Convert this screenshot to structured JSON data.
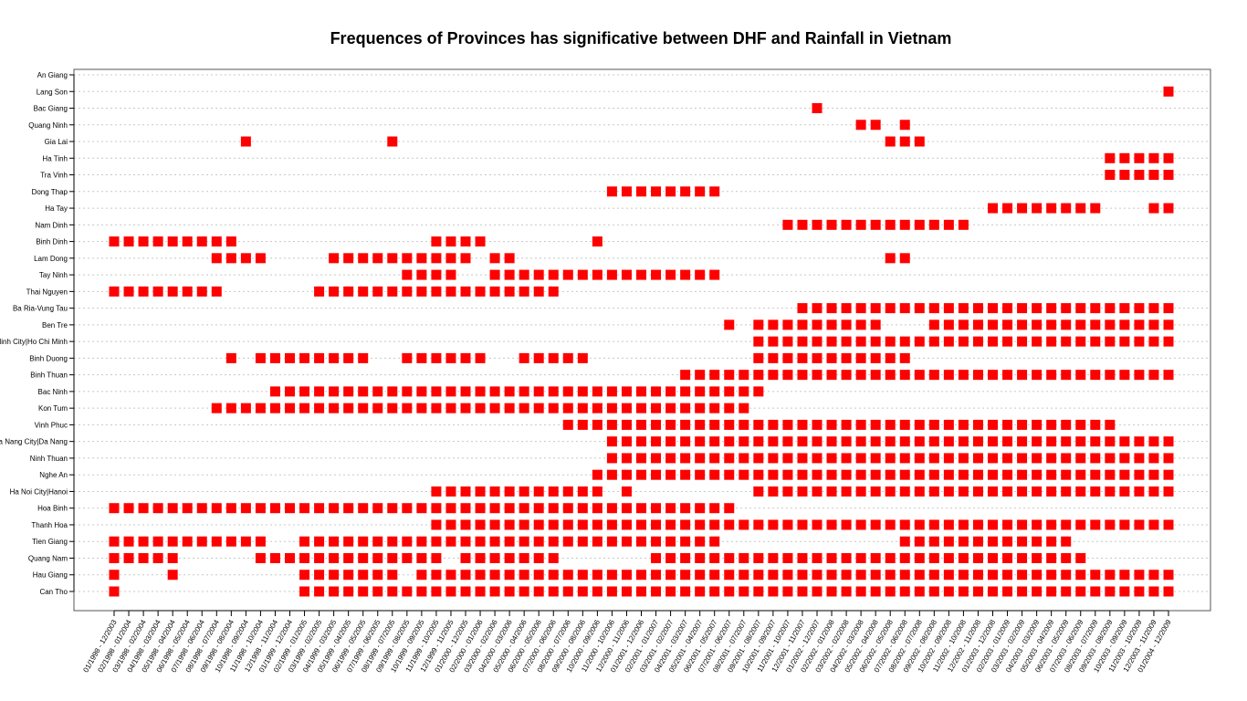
{
  "chart_data": {
    "type": "scatter",
    "title": "Frequences of Provinces has significative between DHF and Rainfall in Vietnam",
    "xlabel": "",
    "ylabel": "",
    "marker": "filled-square",
    "marker_color": "#ff0000",
    "grid": "horizontal dotted",
    "x_tick_labels": [
      "01/1998 - 12/2003",
      "02/1998 - 01/2004",
      "03/1998 - 02/2004",
      "04/1998 - 03/2004",
      "05/1998 - 04/2004",
      "06/1998 - 05/2004",
      "07/1998 - 06/2004",
      "08/1998 - 07/2004",
      "09/1998 - 08/2004",
      "10/1998 - 09/2004",
      "11/1998 - 10/2004",
      "12/1998 - 11/2004",
      "01/1999 - 12/2004",
      "02/1999 - 01/2005",
      "03/1999 - 02/2005",
      "04/1999 - 03/2005",
      "05/1999 - 04/2005",
      "06/1999 - 05/2005",
      "07/1999 - 06/2005",
      "08/1999 - 07/2005",
      "09/1999 - 08/2005",
      "10/1999 - 09/2005",
      "11/1999 - 10/2005",
      "12/1999 - 11/2005",
      "01/2000 - 12/2005",
      "02/2000 - 01/2006",
      "03/2000 - 02/2006",
      "04/2000 - 03/2006",
      "05/2000 - 04/2006",
      "06/2000 - 05/2006",
      "07/2000 - 06/2006",
      "08/2000 - 07/2006",
      "09/2000 - 08/2006",
      "10/2000 - 09/2006",
      "11/2000 - 10/2006",
      "12/2000 - 11/2006",
      "01/2001 - 12/2006",
      "02/2001 - 01/2007",
      "03/2001 - 02/2007",
      "04/2001 - 03/2007",
      "05/2001 - 04/2007",
      "06/2001 - 05/2007",
      "07/2001 - 06/2007",
      "08/2001 - 07/2007",
      "09/2001 - 08/2007",
      "10/2001 - 09/2007",
      "11/2001 - 10/2007",
      "12/2001 - 11/2007",
      "01/2002 - 12/2007",
      "02/2002 - 01/2008",
      "03/2002 - 02/2008",
      "04/2002 - 03/2008",
      "05/2002 - 04/2008",
      "06/2002 - 05/2008",
      "07/2002 - 06/2008",
      "08/2002 - 07/2008",
      "09/2002 - 08/2008",
      "10/2002 - 09/2008",
      "11/2002 - 10/2008",
      "12/2002 - 11/2008",
      "01/2003 - 12/2008",
      "02/2003 - 01/2009",
      "03/2003 - 02/2009",
      "04/2003 - 03/2009",
      "05/2003 - 04/2009",
      "06/2003 - 05/2009",
      "07/2003 - 06/2009",
      "08/2003 - 07/2009",
      "09/2003 - 08/2009",
      "10/2003 - 09/2009",
      "11/2003 - 10/2009",
      "12/2003 - 11/2009",
      "01/2004 - 12/2009"
    ],
    "provinces": [
      {
        "name": "An Giang",
        "periods": []
      },
      {
        "name": "Lang Son",
        "periods": [
          [
            73,
            73
          ]
        ]
      },
      {
        "name": "Bac Giang",
        "periods": [
          [
            49,
            49
          ]
        ]
      },
      {
        "name": "Quang Ninh",
        "periods": [
          [
            52,
            53
          ],
          [
            55,
            55
          ]
        ]
      },
      {
        "name": "Gia Lai",
        "periods": [
          [
            10,
            10
          ],
          [
            20,
            20
          ],
          [
            54,
            56
          ]
        ]
      },
      {
        "name": "Ha Tinh",
        "periods": [
          [
            69,
            73
          ]
        ]
      },
      {
        "name": "Tra Vinh",
        "periods": [
          [
            69,
            73
          ]
        ]
      },
      {
        "name": "Dong Thap",
        "periods": [
          [
            35,
            42
          ]
        ]
      },
      {
        "name": "Ha Tay",
        "periods": [
          [
            61,
            68
          ],
          [
            72,
            73
          ]
        ]
      },
      {
        "name": "Nam Dinh",
        "periods": [
          [
            47,
            59
          ]
        ]
      },
      {
        "name": "Binh Dinh",
        "periods": [
          [
            1,
            9
          ],
          [
            23,
            26
          ],
          [
            34,
            34
          ]
        ]
      },
      {
        "name": "Lam Dong",
        "periods": [
          [
            8,
            11
          ],
          [
            16,
            25
          ],
          [
            27,
            28
          ],
          [
            54,
            55
          ]
        ]
      },
      {
        "name": "Tay Ninh",
        "periods": [
          [
            21,
            24
          ],
          [
            27,
            42
          ]
        ]
      },
      {
        "name": "Thai Nguyen",
        "periods": [
          [
            1,
            8
          ],
          [
            15,
            31
          ]
        ]
      },
      {
        "name": "Ba Ria-Vung Tau",
        "periods": [
          [
            48,
            73
          ]
        ]
      },
      {
        "name": "Ben Tre",
        "periods": [
          [
            43,
            43
          ],
          [
            45,
            53
          ],
          [
            57,
            73
          ]
        ]
      },
      {
        "name": "Ho Chi Minh City|Ho Chi Minh",
        "periods": [
          [
            45,
            73
          ]
        ]
      },
      {
        "name": "Binh Duong",
        "periods": [
          [
            9,
            9
          ],
          [
            11,
            18
          ],
          [
            21,
            26
          ],
          [
            29,
            33
          ],
          [
            45,
            55
          ]
        ]
      },
      {
        "name": "Binh Thuan",
        "periods": [
          [
            40,
            73
          ]
        ]
      },
      {
        "name": "Bac Ninh",
        "periods": [
          [
            12,
            45
          ]
        ]
      },
      {
        "name": "Kon Tum",
        "periods": [
          [
            8,
            44
          ]
        ]
      },
      {
        "name": "Vinh Phuc",
        "periods": [
          [
            32,
            69
          ]
        ]
      },
      {
        "name": "Da Nang City|Da Nang",
        "periods": [
          [
            35,
            73
          ]
        ]
      },
      {
        "name": "Ninh Thuan",
        "periods": [
          [
            35,
            73
          ]
        ]
      },
      {
        "name": "Nghe An",
        "periods": [
          [
            34,
            73
          ]
        ]
      },
      {
        "name": "Ha Noi City|Hanoi",
        "periods": [
          [
            23,
            34
          ],
          [
            36,
            36
          ],
          [
            45,
            73
          ]
        ]
      },
      {
        "name": "Hoa Binh",
        "periods": [
          [
            1,
            43
          ]
        ]
      },
      {
        "name": "Thanh Hoa",
        "periods": [
          [
            23,
            73
          ]
        ]
      },
      {
        "name": "Tien Giang",
        "periods": [
          [
            1,
            11
          ],
          [
            14,
            42
          ],
          [
            55,
            66
          ]
        ]
      },
      {
        "name": "Quang Nam",
        "periods": [
          [
            1,
            5
          ],
          [
            11,
            23
          ],
          [
            25,
            31
          ],
          [
            38,
            67
          ]
        ]
      },
      {
        "name": "Hau Giang",
        "periods": [
          [
            1,
            1
          ],
          [
            5,
            5
          ],
          [
            14,
            20
          ],
          [
            22,
            73
          ]
        ]
      },
      {
        "name": "Can Tho",
        "periods": [
          [
            1,
            1
          ],
          [
            14,
            73
          ]
        ]
      }
    ]
  }
}
